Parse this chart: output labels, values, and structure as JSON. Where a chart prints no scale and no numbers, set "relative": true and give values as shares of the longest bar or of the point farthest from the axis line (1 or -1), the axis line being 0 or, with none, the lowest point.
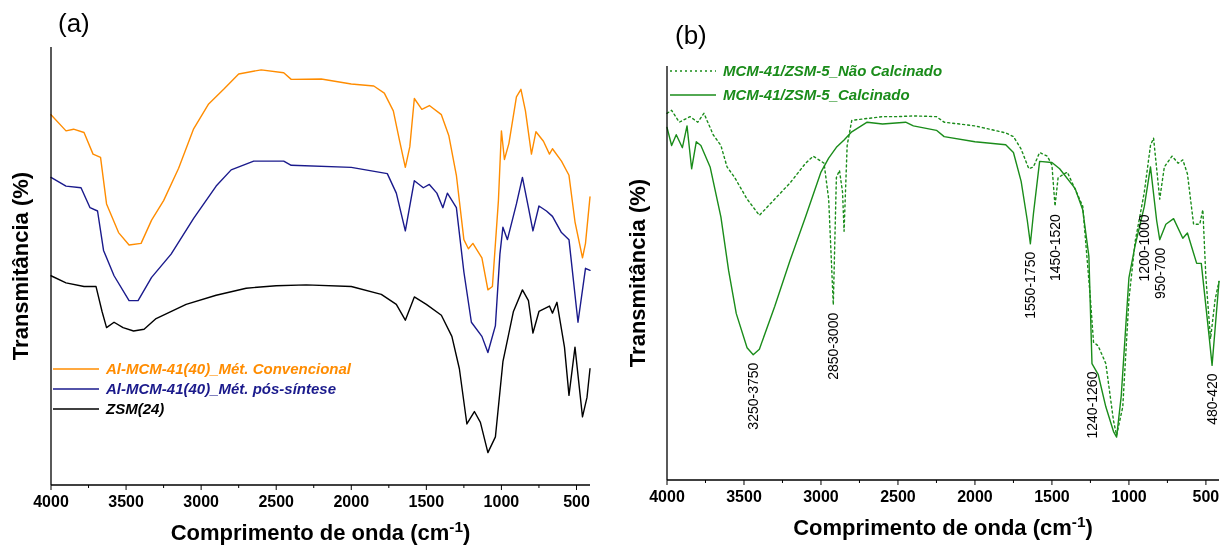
{
  "chart_data": [
    {
      "type": "line",
      "title": "(a)",
      "xlabel": "Comprimento de onda (cm$^{-1}$)",
      "ylabel": "Transmitância (%)",
      "relative": true,
      "legend": "bottom left",
      "grid": false,
      "tick_labels": "x",
      "marker": "none",
      "xlim": [
        4000,
        410
      ],
      "xticks": [
        4000,
        {
          "value": 3750,
          "label": null
        },
        3500,
        {
          "value": 3250,
          "label": null
        },
        3000,
        {
          "value": 2750,
          "label": null
        },
        2500,
        {
          "value": 2250,
          "label": null
        },
        2000,
        {
          "value": 1750,
          "label": null
        },
        1500,
        {
          "value": 1250,
          "label": null
        },
        1000,
        {
          "value": 750,
          "label": null
        },
        500
      ],
      "series": [
        {
          "name": "Al-MCM-41(40)_Mét. Convencional",
          "color": "#ff8c00",
          "line_style": "solid",
          "x": [
            4000,
            3900,
            3850,
            3780,
            3720,
            3670,
            3630,
            3550,
            3480,
            3400,
            3330,
            3250,
            3150,
            3050,
            2950,
            2850,
            2750,
            2600,
            2450,
            2400,
            2200,
            2000,
            1850,
            1780,
            1720,
            1680,
            1640,
            1610,
            1580,
            1530,
            1480,
            1400,
            1350,
            1300,
            1250,
            1220,
            1190,
            1130,
            1090,
            1060,
            1020,
            1000,
            980,
            950,
            900,
            870,
            840,
            800,
            770,
            720,
            680,
            660,
            600,
            550,
            510,
            460,
            440,
            410
          ],
          "values": [
            0.892,
            0.853,
            0.857,
            0.849,
            0.797,
            0.789,
            0.677,
            0.608,
            0.578,
            0.582,
            0.638,
            0.685,
            0.763,
            0.858,
            0.918,
            0.953,
            0.99,
            1.0,
            0.993,
            0.977,
            0.978,
            0.966,
            0.961,
            0.944,
            0.901,
            0.832,
            0.765,
            0.815,
            0.931,
            0.905,
            0.914,
            0.892,
            0.841,
            0.746,
            0.591,
            0.569,
            0.582,
            0.547,
            0.47,
            0.478,
            0.685,
            0.853,
            0.784,
            0.823,
            0.935,
            0.953,
            0.901,
            0.797,
            0.851,
            0.828,
            0.797,
            0.81,
            0.78,
            0.746,
            0.634,
            0.547,
            0.582,
            0.694
          ]
        },
        {
          "name": "Al-MCM-41(40)_Mét. pós-síntese",
          "color": "#1a1a8c",
          "line_style": "solid",
          "x": [
            4000,
            3900,
            3800,
            3740,
            3690,
            3650,
            3580,
            3480,
            3420,
            3330,
            3200,
            3050,
            2900,
            2800,
            2650,
            2450,
            2400,
            2000,
            1760,
            1700,
            1640,
            1580,
            1520,
            1480,
            1430,
            1390,
            1360,
            1300,
            1250,
            1200,
            1130,
            1090,
            1040,
            1010,
            990,
            960,
            900,
            860,
            820,
            790,
            750,
            700,
            660,
            600,
            550,
            490,
            440,
            410
          ],
          "values": [
            0.741,
            0.72,
            0.716,
            0.668,
            0.66,
            0.565,
            0.504,
            0.444,
            0.444,
            0.5,
            0.556,
            0.642,
            0.72,
            0.759,
            0.78,
            0.78,
            0.77,
            0.765,
            0.75,
            0.703,
            0.612,
            0.733,
            0.716,
            0.724,
            0.703,
            0.668,
            0.703,
            0.668,
            0.513,
            0.392,
            0.358,
            0.319,
            0.384,
            0.556,
            0.621,
            0.591,
            0.677,
            0.741,
            0.668,
            0.612,
            0.672,
            0.66,
            0.647,
            0.608,
            0.591,
            0.392,
            0.522,
            0.517
          ]
        },
        {
          "name": "ZSM(24)",
          "color": "#000000",
          "line_style": "solid",
          "x": [
            4000,
            3900,
            3780,
            3700,
            3660,
            3630,
            3580,
            3520,
            3450,
            3380,
            3300,
            3100,
            2900,
            2700,
            2500,
            2300,
            2000,
            1800,
            1700,
            1640,
            1580,
            1500,
            1400,
            1330,
            1280,
            1230,
            1180,
            1140,
            1090,
            1040,
            990,
            920,
            860,
            820,
            790,
            750,
            680,
            660,
            630,
            580,
            550,
            510,
            460,
            430,
            410
          ],
          "values": [
            0.504,
            0.487,
            0.478,
            0.478,
            0.418,
            0.379,
            0.392,
            0.379,
            0.371,
            0.375,
            0.401,
            0.435,
            0.457,
            0.474,
            0.48,
            0.482,
            0.478,
            0.459,
            0.435,
            0.397,
            0.453,
            0.435,
            0.409,
            0.358,
            0.28,
            0.147,
            0.177,
            0.151,
            0.078,
            0.116,
            0.297,
            0.418,
            0.47,
            0.444,
            0.366,
            0.418,
            0.431,
            0.414,
            0.44,
            0.332,
            0.216,
            0.332,
            0.164,
            0.211,
            0.28
          ]
        }
      ]
    },
    {
      "type": "line",
      "title": "(b)",
      "xlabel": "Comprimento de onda (cm$^{-1}$)",
      "ylabel": "Transmitância (%)",
      "relative": true,
      "legend": "top left",
      "grid": false,
      "tick_labels": "x",
      "marker": "none",
      "xlim": [
        4000,
        415
      ],
      "xticks": [
        4000,
        {
          "value": 3750,
          "label": null
        },
        3500,
        {
          "value": 3250,
          "label": null
        },
        3000,
        {
          "value": 2750,
          "label": null
        },
        2500,
        {
          "value": 2250,
          "label": null
        },
        2000,
        {
          "value": 1750,
          "label": null
        },
        1500,
        {
          "value": 1250,
          "label": null
        },
        1000,
        {
          "value": 750,
          "label": null
        },
        500
      ],
      "annotations": [
        {
          "text": "3250-3750",
          "x": 3440,
          "y": 0.339
        },
        {
          "text": "2850-3000",
          "x": 2920,
          "y": 0.474
        },
        {
          "text": "1550-1750",
          "x": 1640,
          "y": 0.639
        },
        {
          "text": "1450-1520",
          "x": 1480,
          "y": 0.741
        },
        {
          "text": "1240-1260",
          "x": 1240,
          "y": 0.315
        },
        {
          "text": "1200-1000",
          "x": 900,
          "y": 0.74
        },
        {
          "text": "950-700",
          "x": 800,
          "y": 0.65
        },
        {
          "text": "480-420",
          "x": 460,
          "y": 0.31
        }
      ],
      "series": [
        {
          "name": "MCM-41/ZSM-5_Não Calcinado",
          "color": "#1a8c1a",
          "line_style": "dotted",
          "x": [
            4000,
            3970,
            3920,
            3850,
            3800,
            3760,
            3700,
            3650,
            3610,
            3560,
            3480,
            3400,
            3300,
            3200,
            3100,
            3050,
            2980,
            2950,
            2920,
            2900,
            2880,
            2860,
            2850,
            2830,
            2800,
            2700,
            2600,
            2500,
            2400,
            2250,
            2200,
            2000,
            1800,
            1750,
            1700,
            1650,
            1620,
            1580,
            1530,
            1500,
            1480,
            1460,
            1400,
            1300,
            1250,
            1230,
            1200,
            1150,
            1100,
            1080,
            1040,
            1000,
            960,
            900,
            860,
            840,
            800,
            770,
            720,
            680,
            650,
            620,
            580,
            540,
            520,
            500,
            470,
            440,
            415
          ],
          "values": [
            0.992,
            1.0,
            0.968,
            0.983,
            0.968,
            0.992,
            0.934,
            0.905,
            0.847,
            0.818,
            0.76,
            0.716,
            0.76,
            0.804,
            0.857,
            0.876,
            0.857,
            0.76,
            0.474,
            0.818,
            0.838,
            0.779,
            0.673,
            0.905,
            0.973,
            0.978,
            0.983,
            0.983,
            0.985,
            0.983,
            0.968,
            0.958,
            0.939,
            0.929,
            0.895,
            0.842,
            0.847,
            0.886,
            0.876,
            0.852,
            0.741,
            0.818,
            0.833,
            0.741,
            0.489,
            0.373,
            0.363,
            0.315,
            0.16,
            0.121,
            0.198,
            0.489,
            0.644,
            0.779,
            0.905,
            0.925,
            0.76,
            0.847,
            0.876,
            0.857,
            0.866,
            0.828,
            0.692,
            0.692,
            0.731,
            0.547,
            0.382,
            0.489,
            0.537
          ]
        },
        {
          "name": "MCM-41/ZSM-5_Calcinado",
          "color": "#1a8c1a",
          "line_style": "solid",
          "x": [
            4000,
            3970,
            3940,
            3900,
            3870,
            3840,
            3810,
            3780,
            3720,
            3650,
            3600,
            3550,
            3480,
            3440,
            3400,
            3300,
            3200,
            3100,
            3000,
            2950,
            2900,
            2850,
            2800,
            2700,
            2600,
            2450,
            2400,
            2250,
            2200,
            2000,
            1800,
            1750,
            1700,
            1660,
            1640,
            1620,
            1580,
            1500,
            1450,
            1350,
            1300,
            1260,
            1240,
            1200,
            1150,
            1100,
            1080,
            1050,
            1000,
            960,
            900,
            860,
            820,
            800,
            760,
            710,
            650,
            620,
            560,
            530,
            480,
            460,
            440,
            415
          ],
          "values": [
            0.954,
            0.905,
            0.934,
            0.899,
            0.958,
            0.842,
            0.915,
            0.905,
            0.847,
            0.712,
            0.567,
            0.45,
            0.358,
            0.339,
            0.354,
            0.47,
            0.595,
            0.712,
            0.833,
            0.871,
            0.9,
            0.92,
            0.942,
            0.968,
            0.963,
            0.968,
            0.958,
            0.946,
            0.929,
            0.915,
            0.907,
            0.886,
            0.808,
            0.702,
            0.639,
            0.721,
            0.862,
            0.859,
            0.842,
            0.789,
            0.731,
            0.605,
            0.315,
            0.286,
            0.198,
            0.131,
            0.116,
            0.227,
            0.547,
            0.634,
            0.74,
            0.847,
            0.702,
            0.65,
            0.692,
            0.707,
            0.654,
            0.668,
            0.586,
            0.586,
            0.392,
            0.31,
            0.411,
            0.537
          ]
        }
      ]
    }
  ]
}
